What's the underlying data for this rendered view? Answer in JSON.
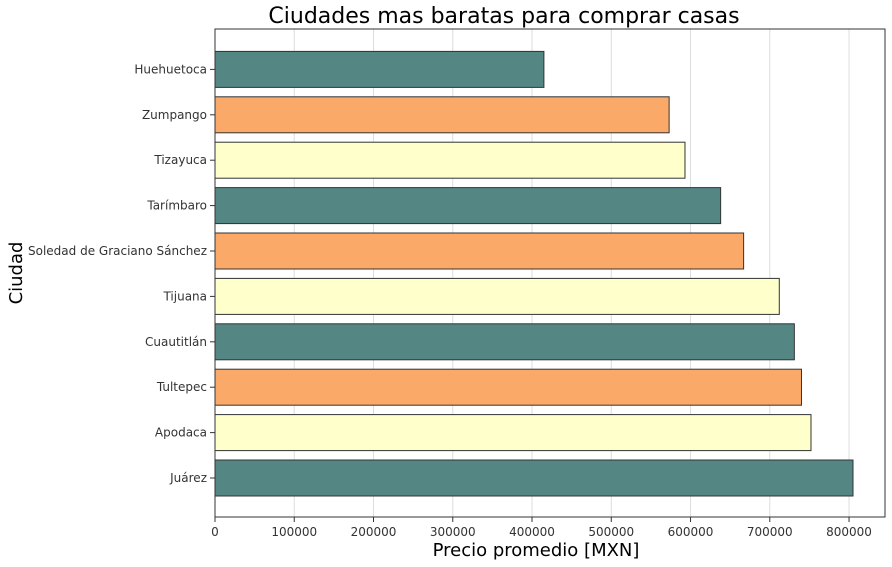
{
  "chart_data": {
    "type": "bar",
    "orientation": "horizontal",
    "title": "Ciudades mas baratas para comprar casas",
    "xlabel": "Precio promedio [MXN]",
    "ylabel": "Ciudad",
    "categories": [
      "Juárez",
      "Apodaca",
      "Tultepec",
      "Cuautitlán",
      "Tijuana",
      "Soledad de Graciano Sánchez",
      "Tarímbaro",
      "Tizayuca",
      "Zumpango",
      "Huehuetoca"
    ],
    "values": [
      805000,
      752000,
      740000,
      731000,
      712000,
      667000,
      638000,
      593000,
      573000,
      415000
    ],
    "bar_colors": [
      "#548684",
      "#ffffcc",
      "#fba968",
      "#548684",
      "#ffffcc",
      "#fba968",
      "#548684",
      "#ffffcc",
      "#fba968",
      "#548684"
    ],
    "xlim": [
      0,
      845000
    ],
    "xticks": [
      0,
      100000,
      200000,
      300000,
      400000,
      500000,
      600000,
      700000,
      800000
    ],
    "xtick_labels": [
      "0",
      "100000",
      "200000",
      "300000",
      "400000",
      "500000",
      "600000",
      "700000",
      "800000"
    ],
    "grid": "vertical"
  }
}
